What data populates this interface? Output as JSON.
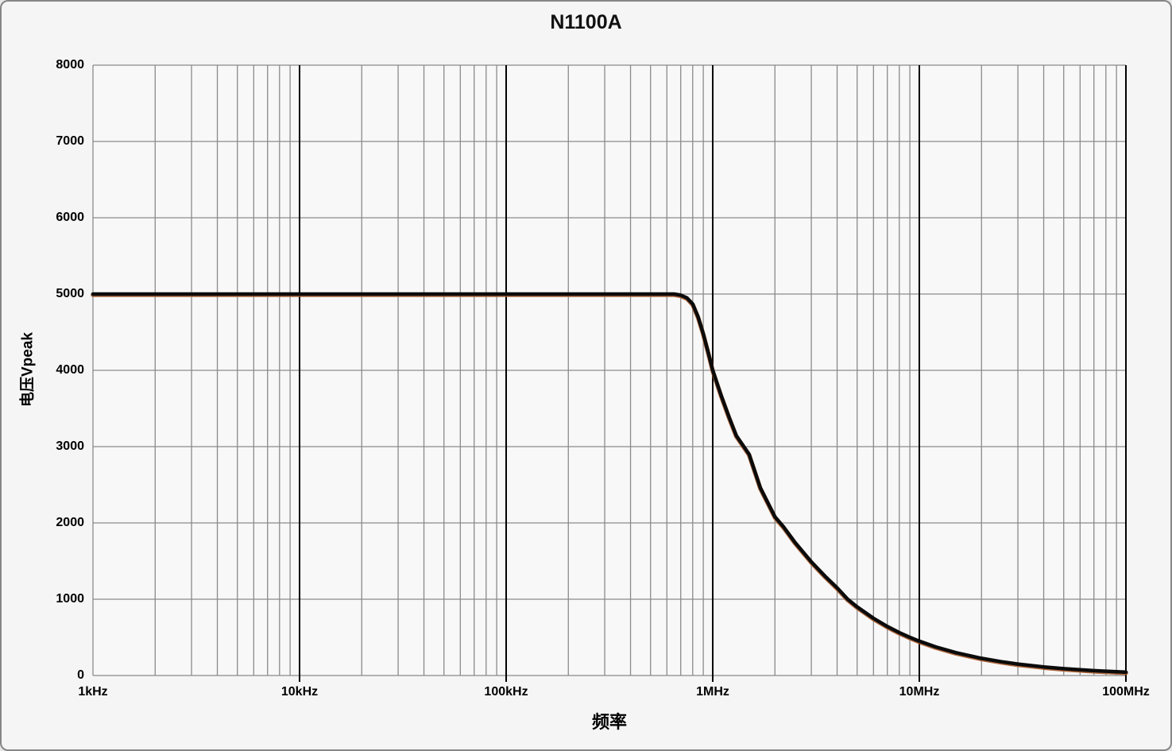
{
  "chart_data": {
    "type": "line",
    "title": "N1100A",
    "xlabel": "频率",
    "ylabel": "电压Vpeak",
    "legend": "none",
    "x_axis": {
      "scale": "log",
      "unit": "Hz",
      "min": 1000,
      "max": 100000000,
      "ticks": [
        {
          "hz": 1000,
          "label": "1kHz"
        },
        {
          "hz": 10000,
          "label": "10kHz"
        },
        {
          "hz": 100000,
          "label": "100kHz"
        },
        {
          "hz": 1000000,
          "label": "1MHz"
        },
        {
          "hz": 10000000,
          "label": "10MHz"
        },
        {
          "hz": 100000000,
          "label": "100MHz"
        }
      ]
    },
    "y_axis": {
      "min": 0,
      "max": 8000,
      "tick_step": 1000,
      "ticks": [
        0,
        1000,
        2000,
        3000,
        4000,
        5000,
        6000,
        7000,
        8000
      ]
    },
    "grid": {
      "minor_color": "#8a8a8a",
      "major_color": "#000000",
      "plot_bg": "#f8f8f8",
      "figure_bg": "#f5f5f5",
      "minor_on": true,
      "major_on": true
    },
    "series": [
      {
        "name": "N1100A",
        "color": "#0b0b0b",
        "fringe_color": "#a8592a",
        "points": [
          [
            1000,
            5000
          ],
          [
            2000,
            5000
          ],
          [
            5000,
            5000
          ],
          [
            10000,
            5000
          ],
          [
            20000,
            5000
          ],
          [
            50000,
            5000
          ],
          [
            100000,
            5000
          ],
          [
            200000,
            5000
          ],
          [
            300000,
            5000
          ],
          [
            400000,
            5000
          ],
          [
            500000,
            5000
          ],
          [
            600000,
            5000
          ],
          [
            650000,
            5000
          ],
          [
            700000,
            4985
          ],
          [
            750000,
            4950
          ],
          [
            800000,
            4870
          ],
          [
            850000,
            4700
          ],
          [
            900000,
            4480
          ],
          [
            950000,
            4240
          ],
          [
            1000000,
            4000
          ],
          [
            1100000,
            3665
          ],
          [
            1200000,
            3385
          ],
          [
            1300000,
            3145
          ],
          [
            1500000,
            2900
          ],
          [
            1700000,
            2460
          ],
          [
            2000000,
            2080
          ],
          [
            2200000,
            1950
          ],
          [
            2500000,
            1745
          ],
          [
            3000000,
            1490
          ],
          [
            3500000,
            1300
          ],
          [
            4000000,
            1150
          ],
          [
            4500000,
            1000
          ],
          [
            5000000,
            900
          ],
          [
            6000000,
            750
          ],
          [
            7000000,
            643
          ],
          [
            8000000,
            563
          ],
          [
            9000000,
            500
          ],
          [
            10000000,
            450
          ],
          [
            12000000,
            375
          ],
          [
            15000000,
            300
          ],
          [
            20000000,
            225
          ],
          [
            25000000,
            180
          ],
          [
            30000000,
            150
          ],
          [
            40000000,
            113
          ],
          [
            50000000,
            90
          ],
          [
            60000000,
            75
          ],
          [
            70000000,
            64
          ],
          [
            80000000,
            56
          ],
          [
            90000000,
            50
          ],
          [
            100000000,
            45
          ]
        ]
      }
    ]
  }
}
